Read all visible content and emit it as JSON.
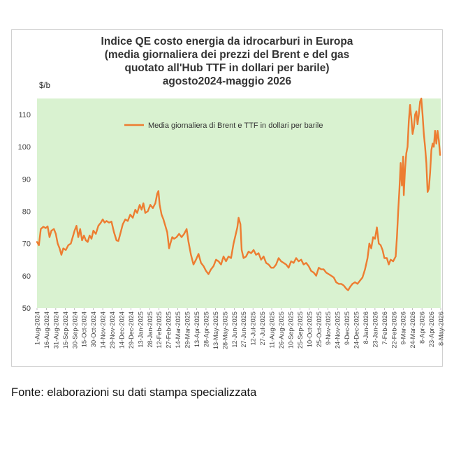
{
  "chart_data": {
    "type": "line",
    "title_lines": [
      "Indice QE costo energia da idrocarburi in Europa",
      "(media giornaliera dei prezzi del Brent e del gas",
      "quotato all'Hub TTF in dollari per barile)",
      "agosto2024-maggio 2026"
    ],
    "ylabel": "$/b",
    "ylim": [
      50,
      115
    ],
    "yticks": [
      50,
      60,
      70,
      80,
      90,
      100,
      110
    ],
    "xlim": [
      "2024-08-01",
      "2026-05-08"
    ],
    "x_tick_labels": [
      "1-Aug-2024",
      "16-Aug-2024",
      "31-Aug-2024",
      "15-Sep-2024",
      "30-Sep-2024",
      "15-Oct-2024",
      "30-Oct-2024",
      "14-Nov-2024",
      "29-Nov-2024",
      "14-Dec-2024",
      "29-Dec-2024",
      "13-Jan-2025",
      "28-Jan-2025",
      "12-Feb-2025",
      "27-Feb-2025",
      "14-Mar-2025",
      "29-Mar-2025",
      "13-Apr-2025",
      "28-Apr-2025",
      "13-May-2025",
      "28-May-2025",
      "12-Jun-2025",
      "27-Jun-2025",
      "12-Jul-2025",
      "27-Jul-2025",
      "11-Aug-2025",
      "26-Aug-2025",
      "10-Sep-2025",
      "25-Sep-2025",
      "10-Oct-2025",
      "25-Oct-2025",
      "9-Nov-2025",
      "24-Nov-2025",
      "9-Dec-2025",
      "24-Dec-2025",
      "8-Jan-2026",
      "23-Jan-2026",
      "7-Feb-2026",
      "22-Feb-2026",
      "9-Mar-2026",
      "24-Mar-2026",
      "8-Apr-2026",
      "23-Apr-2026",
      "8-May-2026"
    ],
    "grid": false,
    "plot_background": "#d9f2d0",
    "legend_position": "top-center",
    "series": [
      {
        "name": "Media giornaliera di Brent e TTF in dollari per barile",
        "color": "#ed7d31",
        "points": [
          [
            "2024-08-01",
            70.5
          ],
          [
            "2024-08-04",
            69.5
          ],
          [
            "2024-08-07",
            74.5
          ],
          [
            "2024-08-11",
            75.2
          ],
          [
            "2024-08-15",
            74.8
          ],
          [
            "2024-08-18",
            75.3
          ],
          [
            "2024-08-21",
            72
          ],
          [
            "2024-08-24",
            74
          ],
          [
            "2024-08-28",
            74.5
          ],
          [
            "2024-08-31",
            73
          ],
          [
            "2024-09-03",
            70
          ],
          [
            "2024-09-06",
            68.5
          ],
          [
            "2024-09-09",
            66.5
          ],
          [
            "2024-09-12",
            68.5
          ],
          [
            "2024-09-16",
            68
          ],
          [
            "2024-09-20",
            69.5
          ],
          [
            "2024-09-24",
            70
          ],
          [
            "2024-09-27",
            72
          ],
          [
            "2024-09-30",
            74
          ],
          [
            "2024-10-03",
            75.5
          ],
          [
            "2024-10-06",
            72
          ],
          [
            "2024-10-09",
            74.5
          ],
          [
            "2024-10-12",
            71
          ],
          [
            "2024-10-15",
            72.5
          ],
          [
            "2024-10-18",
            71
          ],
          [
            "2024-10-21",
            70.5
          ],
          [
            "2024-10-24",
            72.5
          ],
          [
            "2024-10-27",
            71.5
          ],
          [
            "2024-10-30",
            74
          ],
          [
            "2024-11-03",
            73
          ],
          [
            "2024-11-07",
            75.5
          ],
          [
            "2024-11-11",
            76.5
          ],
          [
            "2024-11-14",
            77.5
          ],
          [
            "2024-11-17",
            76.5
          ],
          [
            "2024-11-20",
            77
          ],
          [
            "2024-11-24",
            76.5
          ],
          [
            "2024-11-28",
            76.8
          ],
          [
            "2024-12-02",
            73.5
          ],
          [
            "2024-12-06",
            71
          ],
          [
            "2024-12-09",
            70.8
          ],
          [
            "2024-12-12",
            73
          ],
          [
            "2024-12-16",
            76
          ],
          [
            "2024-12-20",
            77.5
          ],
          [
            "2024-12-24",
            77
          ],
          [
            "2024-12-28",
            79
          ],
          [
            "2025-01-01",
            78
          ],
          [
            "2025-01-05",
            80.5
          ],
          [
            "2025-01-08",
            79.5
          ],
          [
            "2025-01-12",
            82
          ],
          [
            "2025-01-15",
            80.5
          ],
          [
            "2025-01-18",
            82.5
          ],
          [
            "2025-01-21",
            79.5
          ],
          [
            "2025-01-25",
            80
          ],
          [
            "2025-01-29",
            82
          ],
          [
            "2025-02-02",
            81
          ],
          [
            "2025-02-06",
            82.5
          ],
          [
            "2025-02-09",
            85.5
          ],
          [
            "2025-02-11",
            86.3
          ],
          [
            "2025-02-13",
            82
          ],
          [
            "2025-02-16",
            79
          ],
          [
            "2025-02-19",
            77.5
          ],
          [
            "2025-02-22",
            75.5
          ],
          [
            "2025-02-25",
            73.5
          ],
          [
            "2025-02-28",
            68.5
          ],
          [
            "2025-03-02",
            70
          ],
          [
            "2025-03-05",
            72
          ],
          [
            "2025-03-08",
            71.5
          ],
          [
            "2025-03-12",
            72
          ],
          [
            "2025-03-16",
            73
          ],
          [
            "2025-03-20",
            72
          ],
          [
            "2025-03-24",
            73
          ],
          [
            "2025-03-28",
            74.5
          ],
          [
            "2025-03-31",
            70.5
          ],
          [
            "2025-04-04",
            66.5
          ],
          [
            "2025-04-08",
            63.5
          ],
          [
            "2025-04-12",
            65
          ],
          [
            "2025-04-16",
            66.8
          ],
          [
            "2025-04-20",
            64
          ],
          [
            "2025-04-24",
            63
          ],
          [
            "2025-04-28",
            61.5
          ],
          [
            "2025-05-02",
            60.5
          ],
          [
            "2025-05-06",
            62
          ],
          [
            "2025-05-10",
            63
          ],
          [
            "2025-05-14",
            65
          ],
          [
            "2025-05-18",
            64.5
          ],
          [
            "2025-05-22",
            63.5
          ],
          [
            "2025-05-26",
            66
          ],
          [
            "2025-05-30",
            64.5
          ],
          [
            "2025-06-03",
            66
          ],
          [
            "2025-06-07",
            65.5
          ],
          [
            "2025-06-11",
            70
          ],
          [
            "2025-06-14",
            72.5
          ],
          [
            "2025-06-17",
            75
          ],
          [
            "2025-06-19",
            78
          ],
          [
            "2025-06-22",
            76
          ],
          [
            "2025-06-24",
            68
          ],
          [
            "2025-06-27",
            65.5
          ],
          [
            "2025-07-01",
            66
          ],
          [
            "2025-07-05",
            67.5
          ],
          [
            "2025-07-09",
            67
          ],
          [
            "2025-07-13",
            68
          ],
          [
            "2025-07-17",
            66.5
          ],
          [
            "2025-07-21",
            67
          ],
          [
            "2025-07-25",
            65
          ],
          [
            "2025-07-29",
            66
          ],
          [
            "2025-08-02",
            64
          ],
          [
            "2025-08-06",
            63.5
          ],
          [
            "2025-08-10",
            62.5
          ],
          [
            "2025-08-14",
            62.5
          ],
          [
            "2025-08-18",
            63.5
          ],
          [
            "2025-08-22",
            65.5
          ],
          [
            "2025-08-26",
            64.5
          ],
          [
            "2025-08-30",
            64
          ],
          [
            "2025-09-03",
            63.5
          ],
          [
            "2025-09-07",
            62.5
          ],
          [
            "2025-09-11",
            64.5
          ],
          [
            "2025-09-15",
            64
          ],
          [
            "2025-09-19",
            65.5
          ],
          [
            "2025-09-23",
            64.5
          ],
          [
            "2025-09-27",
            65
          ],
          [
            "2025-10-01",
            63.5
          ],
          [
            "2025-10-05",
            64
          ],
          [
            "2025-10-09",
            63
          ],
          [
            "2025-10-13",
            61.5
          ],
          [
            "2025-10-17",
            61
          ],
          [
            "2025-10-21",
            60
          ],
          [
            "2025-10-25",
            62.5
          ],
          [
            "2025-10-29",
            62
          ],
          [
            "2025-11-02",
            62
          ],
          [
            "2025-11-06",
            61
          ],
          [
            "2025-11-10",
            60.5
          ],
          [
            "2025-11-14",
            60
          ],
          [
            "2025-11-18",
            59.5
          ],
          [
            "2025-11-22",
            58
          ],
          [
            "2025-11-26",
            57.5
          ],
          [
            "2025-11-30",
            57.5
          ],
          [
            "2025-12-04",
            57
          ],
          [
            "2025-12-08",
            56
          ],
          [
            "2025-12-11",
            55.5
          ],
          [
            "2025-12-14",
            56.5
          ],
          [
            "2025-12-18",
            57.5
          ],
          [
            "2025-12-22",
            58
          ],
          [
            "2025-12-26",
            57.5
          ],
          [
            "2025-12-30",
            58.5
          ],
          [
            "2026-01-03",
            59.5
          ],
          [
            "2026-01-07",
            62
          ],
          [
            "2026-01-11",
            65.5
          ],
          [
            "2026-01-14",
            70
          ],
          [
            "2026-01-17",
            68.5
          ],
          [
            "2026-01-20",
            72
          ],
          [
            "2026-01-23",
            71.5
          ],
          [
            "2026-01-26",
            75
          ],
          [
            "2026-01-29",
            70
          ],
          [
            "2026-02-01",
            69.5
          ],
          [
            "2026-02-04",
            68
          ],
          [
            "2026-02-07",
            65.5
          ],
          [
            "2026-02-11",
            65.5
          ],
          [
            "2026-02-14",
            63.5
          ],
          [
            "2026-02-17",
            65
          ],
          [
            "2026-02-21",
            64.5
          ],
          [
            "2026-02-25",
            66
          ],
          [
            "2026-02-27",
            72
          ],
          [
            "2026-03-01",
            80
          ],
          [
            "2026-03-03",
            87
          ],
          [
            "2026-03-05",
            95
          ],
          [
            "2026-03-07",
            88
          ],
          [
            "2026-03-09",
            97
          ],
          [
            "2026-03-10",
            85
          ],
          [
            "2026-03-12",
            93
          ],
          [
            "2026-03-14",
            98
          ],
          [
            "2026-03-16",
            100
          ],
          [
            "2026-03-18",
            108
          ],
          [
            "2026-03-20",
            113
          ],
          [
            "2026-03-22",
            109
          ],
          [
            "2026-03-24",
            104
          ],
          [
            "2026-03-26",
            106
          ],
          [
            "2026-03-28",
            110
          ],
          [
            "2026-03-30",
            111
          ],
          [
            "2026-04-01",
            107
          ],
          [
            "2026-04-03",
            110
          ],
          [
            "2026-04-05",
            114
          ],
          [
            "2026-04-07",
            115
          ],
          [
            "2026-04-09",
            110
          ],
          [
            "2026-04-11",
            104
          ],
          [
            "2026-04-13",
            100
          ],
          [
            "2026-04-15",
            95
          ],
          [
            "2026-04-17",
            86
          ],
          [
            "2026-04-19",
            87
          ],
          [
            "2026-04-21",
            92
          ],
          [
            "2026-04-23",
            99
          ],
          [
            "2026-04-25",
            101
          ],
          [
            "2026-04-27",
            100
          ],
          [
            "2026-04-29",
            105
          ],
          [
            "2026-05-01",
            101
          ],
          [
            "2026-05-03",
            105
          ],
          [
            "2026-05-05",
            102
          ],
          [
            "2026-05-07",
            97.5
          ]
        ]
      }
    ]
  },
  "footer": {
    "source": "Fonte: elaborazioni su dati stampa specializzata"
  }
}
